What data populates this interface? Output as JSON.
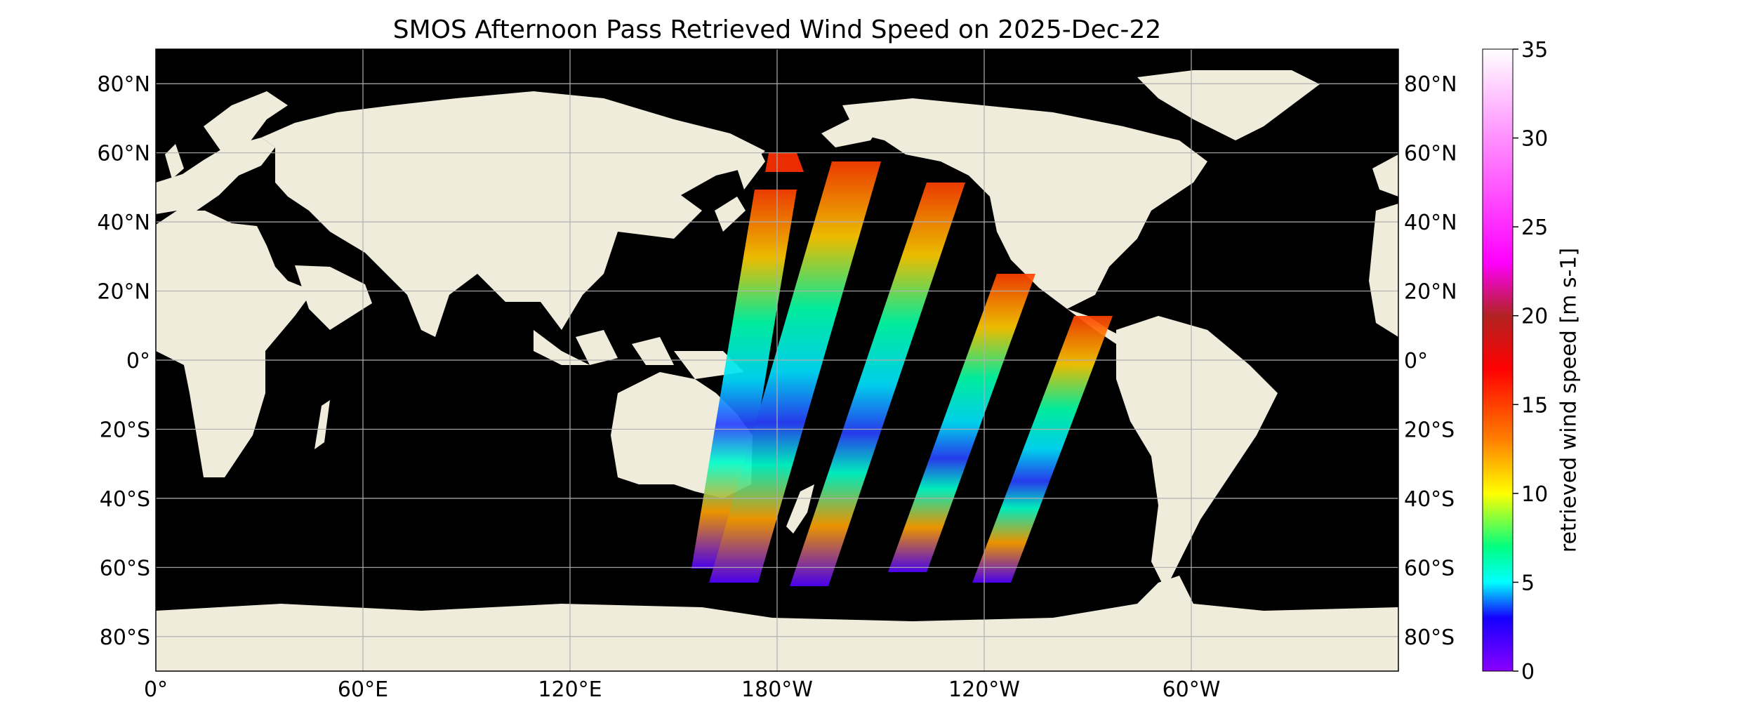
{
  "title": "SMOS Afternoon Pass Retrieved Wind Speed on 2025-Dec-22",
  "colors": {
    "ocean": "#000000",
    "land": "#efecdc",
    "grid": "#b0b0b0"
  },
  "map": {
    "projection": "PlateCarree",
    "lon_range": [
      0,
      360
    ],
    "lat_range": [
      -90,
      90
    ],
    "lat_ticks": [
      {
        "value": 80,
        "label": "80°N"
      },
      {
        "value": 60,
        "label": "60°N"
      },
      {
        "value": 40,
        "label": "40°N"
      },
      {
        "value": 20,
        "label": "20°N"
      },
      {
        "value": 0,
        "label": "0°"
      },
      {
        "value": -20,
        "label": "20°S"
      },
      {
        "value": -40,
        "label": "40°S"
      },
      {
        "value": -60,
        "label": "60°S"
      },
      {
        "value": -80,
        "label": "80°S"
      }
    ],
    "lon_ticks": [
      {
        "value": 0,
        "label": "0°"
      },
      {
        "value": 60,
        "label": "60°E"
      },
      {
        "value": 120,
        "label": "120°E"
      },
      {
        "value": 180,
        "label": "180°W"
      },
      {
        "value": 240,
        "label": "120°W"
      },
      {
        "value": 300,
        "label": "60°W"
      }
    ]
  },
  "colorbar": {
    "label": "retrieved wind speed [m s-1]",
    "range": [
      0,
      35
    ],
    "ticks": [
      "0",
      "5",
      "10",
      "15",
      "20",
      "25",
      "30",
      "35"
    ],
    "stops": [
      {
        "v": 0,
        "c": "#8a00ff"
      },
      {
        "v": 3,
        "c": "#1400ff"
      },
      {
        "v": 5,
        "c": "#00ffff"
      },
      {
        "v": 7,
        "c": "#00ff80"
      },
      {
        "v": 10,
        "c": "#ffff00"
      },
      {
        "v": 13,
        "c": "#ff8000"
      },
      {
        "v": 17,
        "c": "#ff0000"
      },
      {
        "v": 20,
        "c": "#b22222"
      },
      {
        "v": 23,
        "c": "#ff00ff"
      },
      {
        "v": 30,
        "c": "#ff90ff"
      },
      {
        "v": 35,
        "c": "#ffffff"
      }
    ]
  }
}
